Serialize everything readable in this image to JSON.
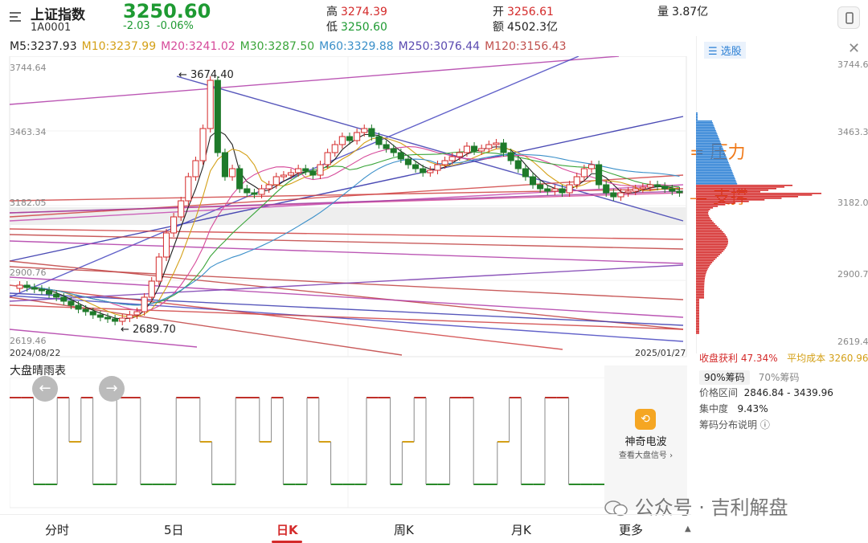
{
  "header": {
    "title": "上证指数",
    "code": "1A0001",
    "price": "3250.60",
    "change": "-2.03",
    "change_pct": "-0.06%",
    "high_label": "高",
    "high": "3274.39",
    "low_label": "低",
    "low": "3250.60",
    "open_label": "开",
    "open": "3256.61",
    "amount_label": "额",
    "amount": "4502.3亿",
    "volume_label": "量",
    "volume": "3.87亿"
  },
  "ma": [
    {
      "label": "M5:3237.93",
      "color": "#222222"
    },
    {
      "label": "M10:3237.99",
      "color": "#d4a017"
    },
    {
      "label": "M20:3241.02",
      "color": "#d64a9a"
    },
    {
      "label": "M30:3287.50",
      "color": "#3aa53a"
    },
    {
      "label": "M60:3329.88",
      "color": "#3a8fc9"
    },
    {
      "label": "M250:3076.44",
      "color": "#5a4ab0"
    },
    {
      "label": "M120:3156.43",
      "color": "#c0504d"
    }
  ],
  "chart": {
    "y_ticks": [
      "3744.64",
      "3463.34",
      "3182.05",
      "2900.76",
      "2619.46"
    ],
    "high_mark": "3674.40",
    "low_mark": "2689.70",
    "start_date": "2024/08/22",
    "end_date": "2025/01/27",
    "annotation_pressure": "压力",
    "annotation_support": "支撑"
  },
  "side": {
    "select_label": "选股",
    "y_ticks": [
      "3744.64",
      "3463.34",
      "3182.05",
      "2900.76",
      "2619.46"
    ],
    "profit_label": "收盘获利",
    "profit": "47.34%",
    "avg_cost_label": "平均成本",
    "avg_cost": "3260.96",
    "chip90": "90%筹码",
    "chip70": "70%筹码",
    "range_label": "价格区间",
    "range": "2846.84 - 3439.96",
    "conc_label": "集中度",
    "conc": "9.43%",
    "explain": "筹码分布说明"
  },
  "sub": {
    "title": "大盘晴雨表",
    "magic_title": "神奇电波",
    "magic_sub": "查看大盘信号"
  },
  "nav": [
    "分时",
    "5日",
    "日K",
    "周K",
    "月K",
    "更多"
  ],
  "watermark": "公众号 · 吉利解盘",
  "colors": {
    "red": "#d42a2a",
    "green": "#1e9a32",
    "blue": "#2a7fd4"
  }
}
